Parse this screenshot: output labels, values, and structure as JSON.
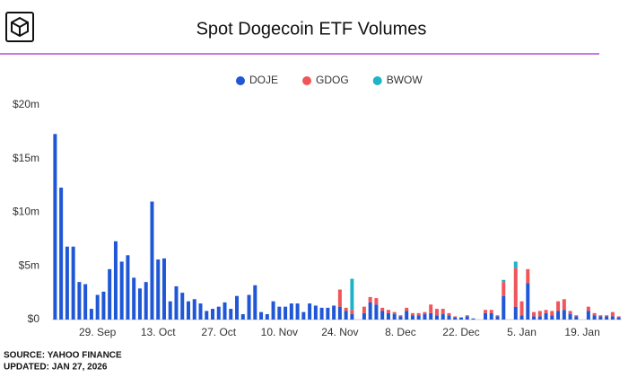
{
  "header": {
    "title": "Spot Dogecoin ETF Volumes"
  },
  "chart_data": {
    "type": "stacked-bar",
    "categories": [
      null,
      null,
      null,
      null,
      null,
      null,
      null,
      "29. Sep",
      null,
      null,
      null,
      null,
      null,
      null,
      null,
      null,
      null,
      "13. Oct",
      null,
      null,
      null,
      null,
      null,
      null,
      null,
      null,
      null,
      "27. Oct",
      null,
      null,
      null,
      null,
      null,
      null,
      null,
      null,
      null,
      "10. Nov",
      null,
      null,
      null,
      null,
      null,
      null,
      null,
      null,
      null,
      "24. Nov",
      null,
      null,
      null,
      null,
      null,
      null,
      null,
      null,
      null,
      "8. Dec",
      null,
      null,
      null,
      null,
      null,
      null,
      null,
      null,
      null,
      "22. Dec",
      null,
      null,
      null,
      null,
      null,
      null,
      null,
      null,
      null,
      "5. Jan",
      null,
      null,
      null,
      null,
      null,
      null,
      null,
      null,
      null,
      "19. Jan",
      null,
      null,
      null,
      null,
      null,
      null
    ],
    "series": [
      {
        "name": "DOJE",
        "color": "#1f57d6",
        "values": [
          17.3,
          12.3,
          6.8,
          6.8,
          3.5,
          3.3,
          1.0,
          2.3,
          2.6,
          4.7,
          7.3,
          5.4,
          6.0,
          3.9,
          2.9,
          3.5,
          11.0,
          5.6,
          5.7,
          1.7,
          3.1,
          2.5,
          1.7,
          1.9,
          1.5,
          0.8,
          1.0,
          1.2,
          1.6,
          1.0,
          2.2,
          0.5,
          2.3,
          3.2,
          0.7,
          0.5,
          1.7,
          1.2,
          1.2,
          1.5,
          1.5,
          0.7,
          1.5,
          1.3,
          1.1,
          1.1,
          1.3,
          1.2,
          0.8,
          0.5,
          null,
          0.6,
          1.6,
          1.4,
          0.8,
          0.6,
          0.5,
          0.3,
          0.8,
          0.4,
          0.4,
          0.5,
          0.6,
          0.4,
          0.5,
          0.4,
          0.2,
          0.2,
          0.3,
          0.1,
          null,
          0.6,
          0.6,
          0.3,
          2.2,
          null,
          1.2,
          0.4,
          3.4,
          0.3,
          0.3,
          0.6,
          0.4,
          0.8,
          0.9,
          0.5,
          0.3,
          null,
          0.8,
          0.4,
          0.3,
          0.3,
          0.3,
          0.2
        ]
      },
      {
        "name": "GDOG",
        "color": "#f0555a",
        "values": [
          0,
          0,
          0,
          0,
          0,
          0,
          0,
          0,
          0,
          0,
          0,
          0,
          0,
          0,
          0,
          0,
          0,
          0,
          0,
          0,
          0,
          0,
          0,
          0,
          0,
          0,
          0,
          0,
          0,
          0,
          0,
          0,
          0,
          0,
          0,
          0,
          0,
          0,
          0,
          0,
          0,
          0,
          0,
          0,
          0,
          0,
          0,
          1.6,
          0.3,
          0.4,
          null,
          0.6,
          0.5,
          0.6,
          0.3,
          0.3,
          0.2,
          0.1,
          0.3,
          0.2,
          0.2,
          0.2,
          0.8,
          0.6,
          0.5,
          0.2,
          0.1,
          0,
          0.1,
          0,
          null,
          0.3,
          0.3,
          0.1,
          1.3,
          null,
          3.6,
          1.3,
          1.3,
          0.4,
          0.5,
          0.3,
          0.4,
          0.9,
          1.0,
          0.3,
          0.1,
          null,
          0.4,
          0.2,
          0.1,
          0.1,
          0.4,
          0.1
        ]
      },
      {
        "name": "BWOW",
        "color": "#1fb3c7",
        "values": [
          0,
          0,
          0,
          0,
          0,
          0,
          0,
          0,
          0,
          0,
          0,
          0,
          0,
          0,
          0,
          0,
          0,
          0,
          0,
          0,
          0,
          0,
          0,
          0,
          0,
          0,
          0,
          0,
          0,
          0,
          0,
          0,
          0,
          0,
          0,
          0,
          0,
          0,
          0,
          0,
          0,
          0,
          0,
          0,
          0,
          0,
          0,
          0,
          0,
          2.9,
          null,
          0,
          0,
          0,
          0,
          0,
          0,
          0,
          0,
          0,
          0,
          0,
          0,
          0,
          0,
          0,
          0,
          0,
          0,
          0,
          null,
          0,
          0,
          0,
          0.2,
          null,
          0.6,
          0,
          0,
          0,
          0,
          0,
          0,
          0,
          0,
          0,
          0,
          null,
          0,
          0,
          0,
          0,
          0,
          0
        ]
      }
    ],
    "ylim": [
      0,
      20
    ],
    "yticks": [
      {
        "value": 0,
        "label": "$0"
      },
      {
        "value": 5,
        "label": "$5m"
      },
      {
        "value": 10,
        "label": "$10m"
      },
      {
        "value": 15,
        "label": "$15m"
      },
      {
        "value": 20,
        "label": "$20m"
      }
    ],
    "grid": false,
    "legend": "top"
  },
  "footer": {
    "source": "SOURCE: YAHOO FINANCE",
    "updated": "UPDATED: JAN 27, 2026"
  }
}
